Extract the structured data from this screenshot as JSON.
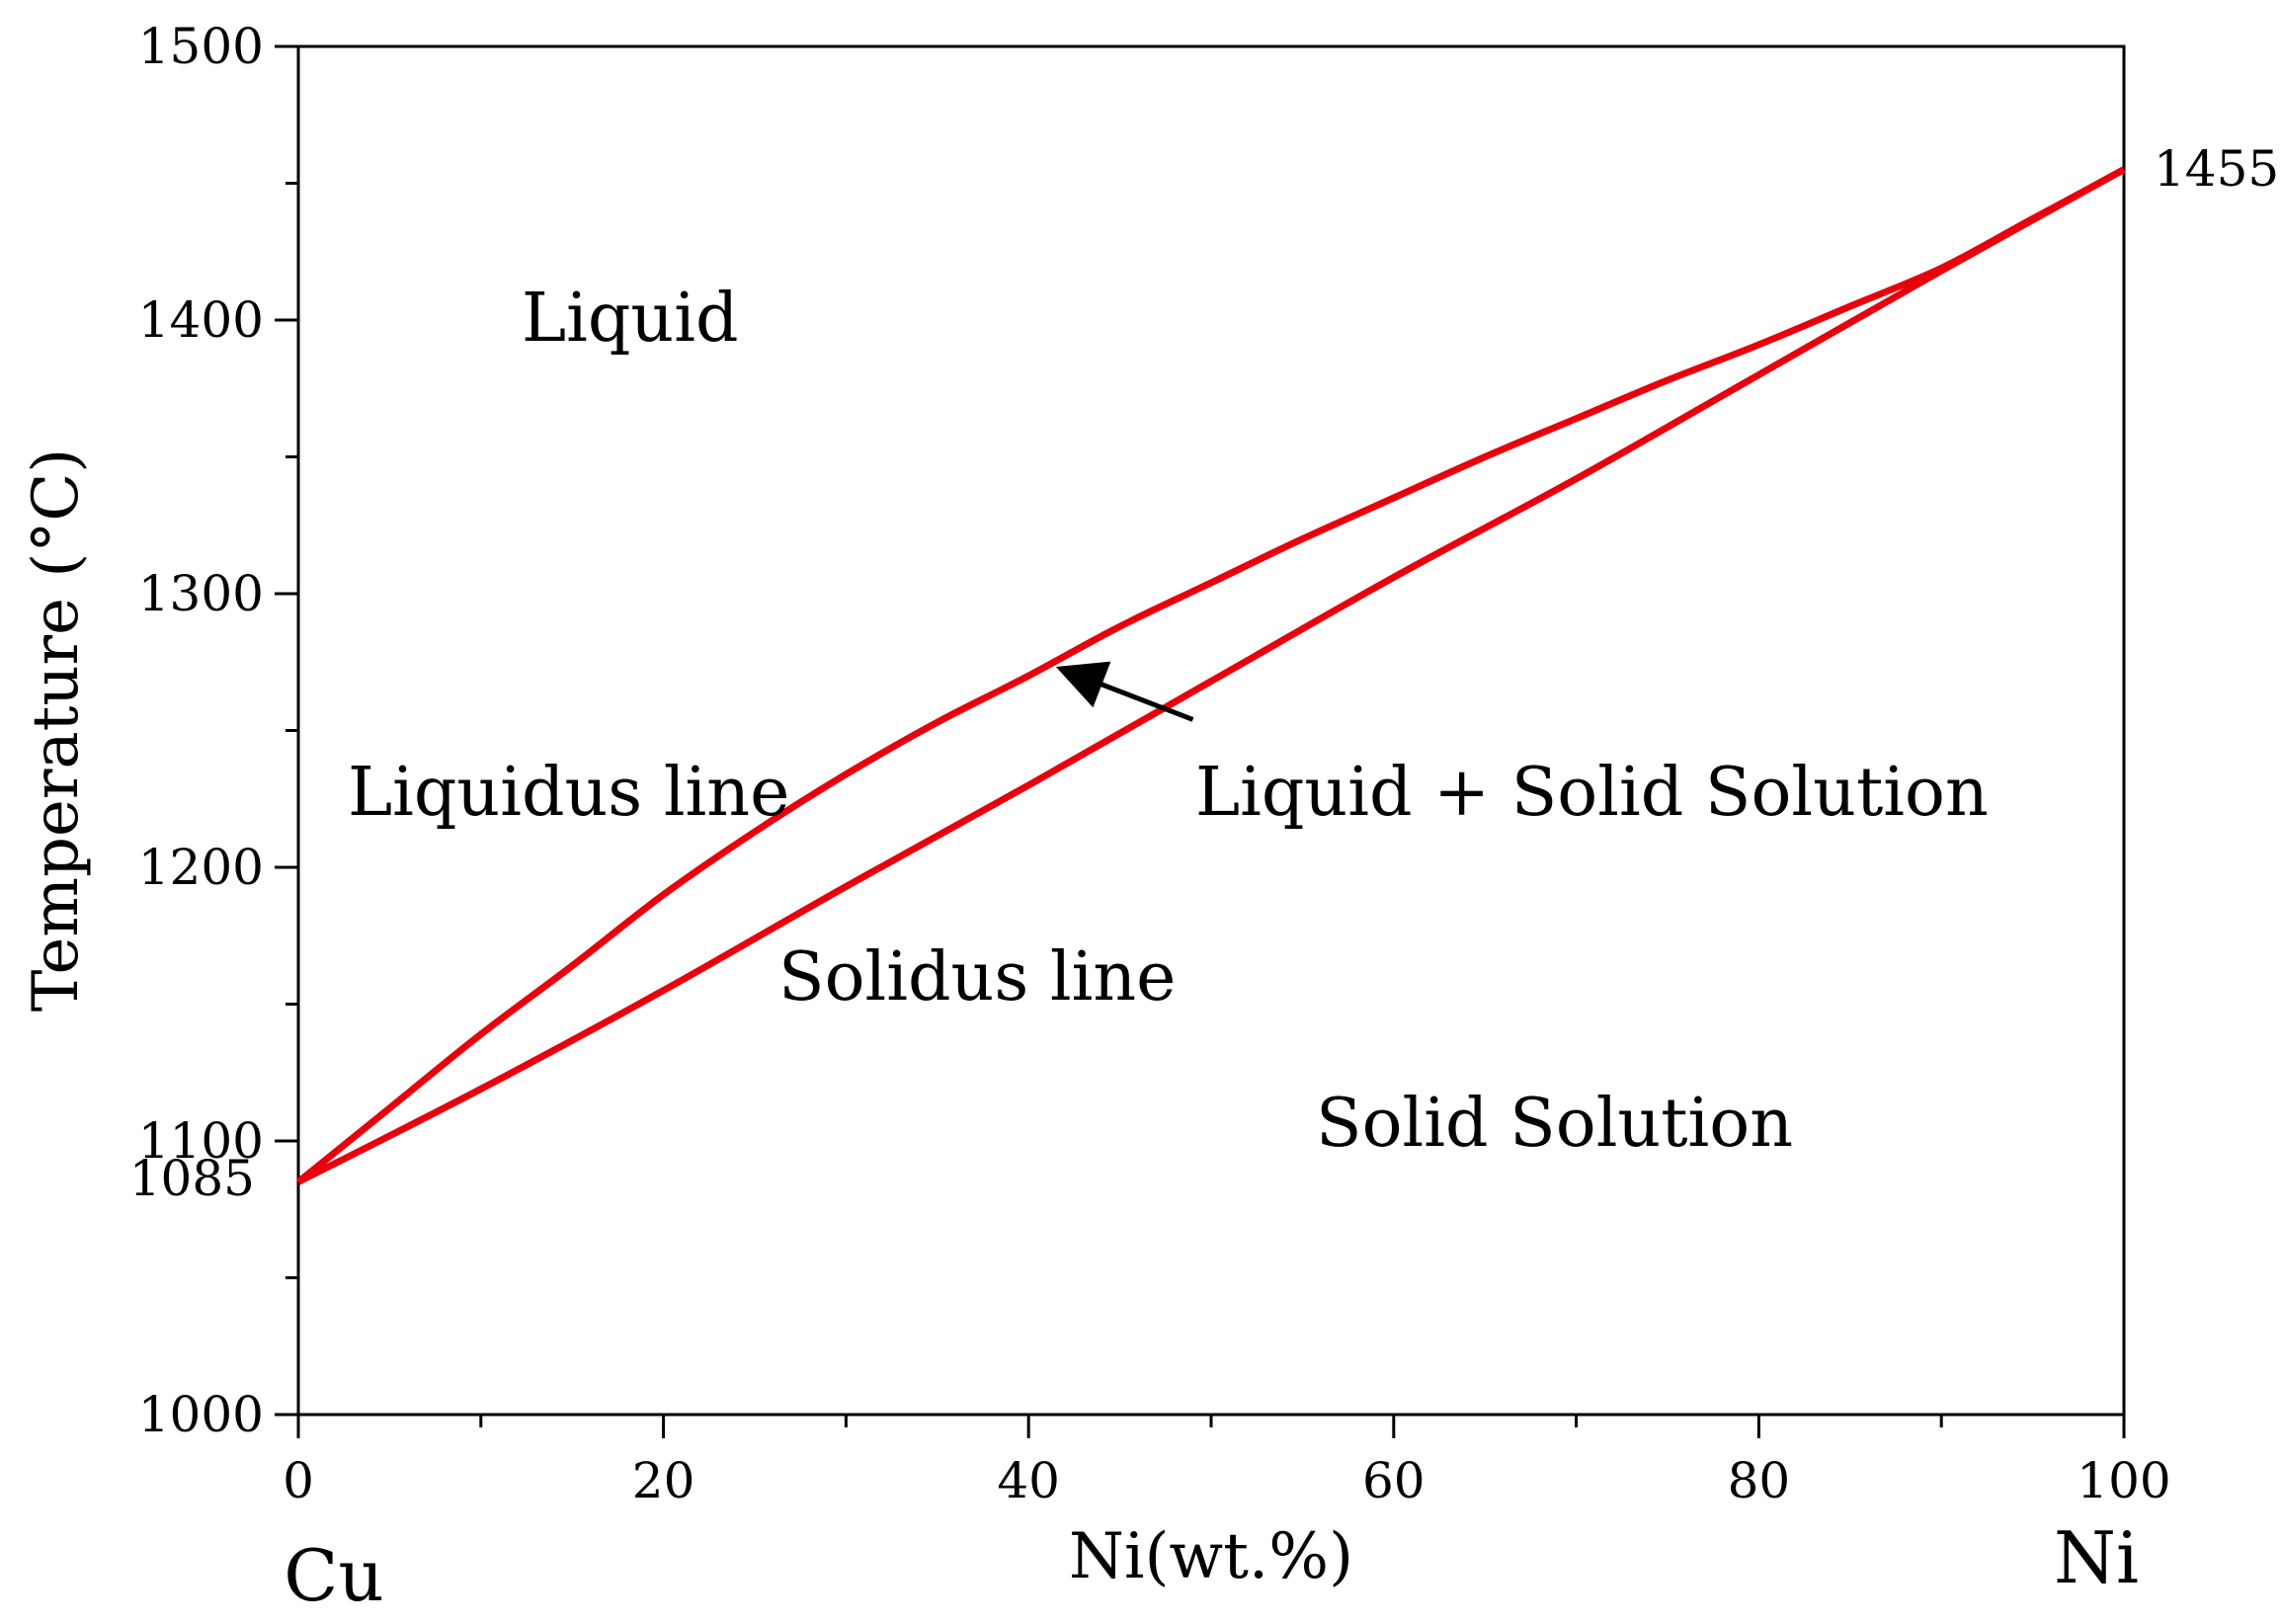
{
  "chart_data": {
    "type": "line",
    "title": "",
    "xlabel": "Ni(wt.%)",
    "ylabel": "Temperature (°C)",
    "xlim": [
      0,
      100
    ],
    "ylim": [
      1000,
      1500
    ],
    "x_ticks": [
      0,
      20,
      40,
      60,
      80,
      100
    ],
    "x_tick_labels": [
      "0",
      "20",
      "40",
      "60",
      "80",
      "100"
    ],
    "y_ticks": [
      1000,
      1100,
      1200,
      1300,
      1400,
      1500
    ],
    "y_tick_labels": [
      "1000",
      "1100",
      "1200",
      "1300",
      "1400",
      "1500"
    ],
    "x_minor_step": 10,
    "y_minor_step": 50,
    "grid": false,
    "series": [
      {
        "name": "Liquidus line",
        "color": "#e8000d",
        "x": [
          0,
          5,
          10,
          15,
          20,
          25,
          30,
          35,
          40,
          45,
          50,
          55,
          60,
          65,
          70,
          75,
          80,
          85,
          90,
          95,
          100
        ],
        "y": [
          1085,
          1112,
          1139,
          1164,
          1190,
          1213,
          1234,
          1253,
          1270,
          1288,
          1304,
          1320,
          1335,
          1350,
          1364,
          1378,
          1391,
          1405,
          1419,
          1437,
          1455
        ]
      },
      {
        "name": "Solidus line",
        "color": "#e8000d",
        "x": [
          0,
          10,
          20,
          30,
          40,
          50,
          60,
          70,
          80,
          90,
          100
        ],
        "y": [
          1085,
          1119,
          1155,
          1193,
          1230,
          1268,
          1306,
          1342,
          1380,
          1418,
          1455
        ]
      }
    ],
    "annotations": {
      "melting_point_cu": "1085",
      "melting_point_ni": "1455",
      "left_component": "Cu",
      "right_component": "Ni",
      "region_liquid": "Liquid",
      "region_liquidus_line": "Liquidus line",
      "region_two_phase": "Liquid + Solid Solution",
      "region_solidus_line": "Solidus line",
      "region_solid": "Solid Solution"
    },
    "arrow": {
      "from": [
        49,
        1254
      ],
      "to": [
        42,
        1272
      ]
    }
  }
}
